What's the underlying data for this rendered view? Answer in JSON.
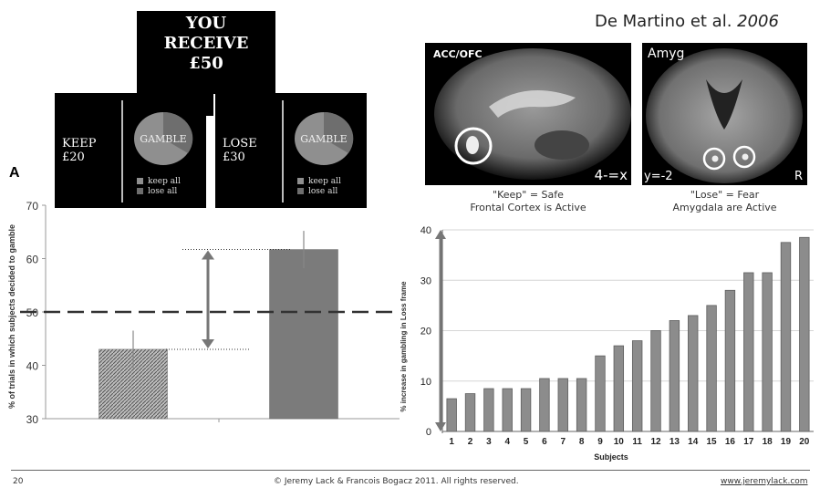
{
  "citation": {
    "authors": "De Martino et al. ",
    "year": "2006"
  },
  "receive_box": {
    "line1": "YOU",
    "line2": "RECEIVE",
    "line3": "£50"
  },
  "options": [
    {
      "left_line1": "KEEP",
      "left_line2": "£20",
      "gamble": "GAMBLE",
      "legend": [
        "keep all",
        "lose all"
      ]
    },
    {
      "left_line1": "LOSE",
      "left_line2": "£30",
      "gamble": "GAMBLE",
      "legend": [
        "keep all",
        "lose all"
      ]
    }
  ],
  "brain_images": [
    {
      "label": "ACC/OFC",
      "corner": "4-=x",
      "caption1": "\"Keep\" = Safe",
      "caption2": "Frontal Cortex is Active"
    },
    {
      "label": "Amyg",
      "corner_left": "y=-2",
      "corner_right": "R",
      "caption1": "\"Lose\"  = Fear",
      "caption2": "Amygdala are Active"
    }
  ],
  "panel_label": "A",
  "chart_data": [
    {
      "type": "bar",
      "ylabel": "% of trials in which subjects decided to gamble",
      "ylim": [
        30,
        70
      ],
      "yticks": [
        "30",
        "40",
        "50",
        "60",
        "70"
      ],
      "series": [
        {
          "values": [
            43,
            61.7
          ]
        }
      ],
      "error": [
        3.5,
        3.5
      ],
      "reference_line": 50,
      "bar_patterns": [
        "hatched",
        "solid-grey"
      ]
    },
    {
      "type": "bar",
      "xlabel": "Subjects",
      "ylabel": "% increase in gambling in Loss frame",
      "ylim": [
        0,
        40
      ],
      "yticks": [
        "0",
        "10",
        "20",
        "30",
        "40"
      ],
      "categories": [
        "1",
        "2",
        "3",
        "4",
        "5",
        "6",
        "7",
        "8",
        "9",
        "10",
        "11",
        "12",
        "13",
        "14",
        "15",
        "16",
        "17",
        "18",
        "19",
        "20"
      ],
      "values": [
        6.5,
        7.5,
        8.5,
        8.5,
        8.5,
        10.5,
        10.5,
        10.5,
        15,
        17,
        18,
        20,
        22,
        23,
        25,
        28,
        31.5,
        31.5,
        37.5,
        38.5
      ]
    }
  ],
  "footer": {
    "page": "20",
    "copyright": "© Jeremy Lack & Francois Bogacz 2011. All rights reserved.",
    "url": "www.jeremylack.com"
  },
  "colors": {
    "bar": "#8c8c8c",
    "dark": "#000000",
    "arrow": "#777777"
  }
}
